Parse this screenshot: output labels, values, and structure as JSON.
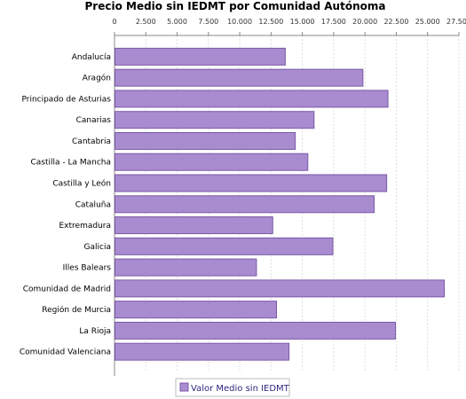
{
  "colors": {
    "bar_fill": "#a98bd0",
    "bar_stroke": "#7a5aa6",
    "grid": "#dddddd",
    "axis": "#888888"
  },
  "chart_data": {
    "type": "bar",
    "orientation": "horizontal",
    "title": "Precio Medio sin IEDMT por Comunidad Autónoma",
    "x_axis_position": "top",
    "xlim": [
      0,
      27500
    ],
    "xticks": [
      0,
      2500,
      5000,
      7500,
      10000,
      12500,
      15000,
      17500,
      20000,
      22500,
      25000,
      27500
    ],
    "xtick_labels": [
      "0",
      "2.500",
      "5.000",
      "7.500",
      "10.000",
      "12.500",
      "15.000",
      "17.500",
      "20.000",
      "22.500",
      "25.000",
      "27.500"
    ],
    "grid": true,
    "legend_position": "bottom",
    "categories": [
      "Andalucía",
      "Aragón",
      "Principado de Asturias",
      "Canarias",
      "Cantabria",
      "Castilla - La Mancha",
      "Castilla y León",
      "Cataluña",
      "Extremadura",
      "Galicia",
      "Illes Balears",
      "Comunidad de Madrid",
      "Región de Murcia",
      "La Rioja",
      "Comunidad Valenciana"
    ],
    "series": [
      {
        "name": "Valor Medio sin IEDMT",
        "values": [
          13600,
          19800,
          21800,
          15900,
          14400,
          15400,
          21700,
          20700,
          12600,
          17400,
          11300,
          26300,
          12900,
          22400,
          13900
        ]
      }
    ]
  }
}
